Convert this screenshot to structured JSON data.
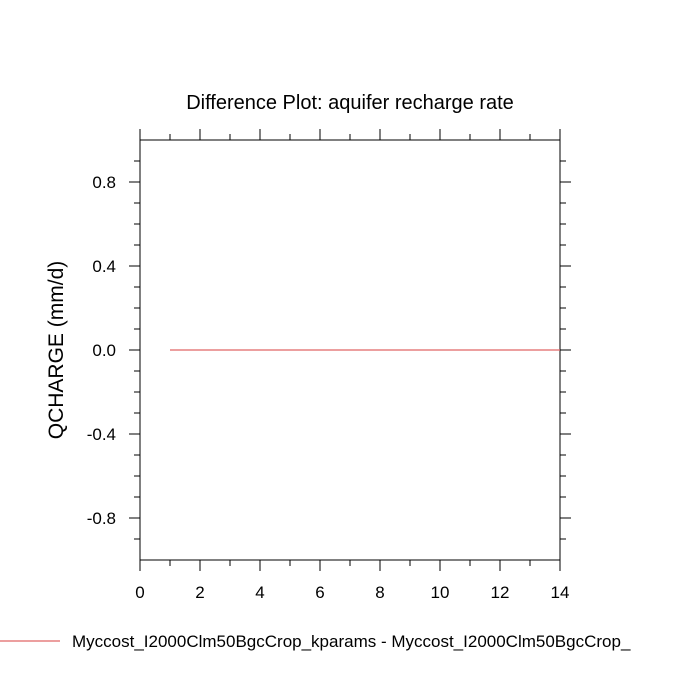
{
  "chart_data": {
    "type": "line",
    "title": "Difference Plot: aquifer recharge rate",
    "xlabel": "",
    "ylabel": "QCHARGE  (mm/d)",
    "xlim": [
      0,
      14
    ],
    "ylim": [
      -1,
      1
    ],
    "x_ticks": [
      0,
      2,
      4,
      6,
      8,
      10,
      12,
      14
    ],
    "x_tick_labels": [
      "0",
      "2",
      "4",
      "6",
      "8",
      "10",
      "12",
      "14"
    ],
    "y_ticks": [
      -0.8,
      -0.4,
      0.0,
      0.4,
      0.8
    ],
    "y_tick_labels": [
      "-0.8",
      "-0.4",
      "0.0",
      "0.4",
      "0.8"
    ],
    "grid": false,
    "legend_position": "bottom",
    "series": [
      {
        "name": "Myccost_I2000Clm50BgcCrop_kparams - Myccost_I2000Clm50BgcCrop_",
        "color": "#e06666",
        "x": [
          1,
          14
        ],
        "y": [
          0,
          0
        ]
      }
    ]
  }
}
